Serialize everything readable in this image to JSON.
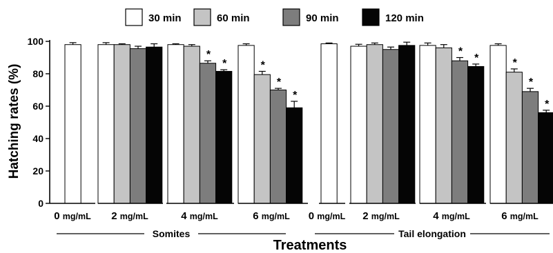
{
  "chart_data": {
    "type": "bar",
    "ylabel": "Hatching rates (%)",
    "xlabel": "Treatments",
    "ylim": [
      0,
      100
    ],
    "yticks": [
      "0",
      "20",
      "40",
      "60",
      "80",
      "100"
    ],
    "legend_position": "top",
    "colors": [
      "#ffffff",
      "#c4c4c4",
      "#7d7d7d",
      "#050505"
    ],
    "series": [
      {
        "name": "30 min"
      },
      {
        "name": "60 min"
      },
      {
        "name": "90 min"
      },
      {
        "name": "120 min"
      }
    ],
    "groups": [
      {
        "label": "Somites",
        "categories": [
          {
            "label": "0 mg/mL",
            "values": [
              98
            ],
            "errors": [
              1.2
            ],
            "sig": [
              false
            ]
          },
          {
            "label": "2 mg/mL",
            "values": [
              98,
              98,
              95.5,
              96.5
            ],
            "errors": [
              1.2,
              0.5,
              1.5,
              2
            ],
            "sig": [
              false,
              false,
              false,
              false
            ]
          },
          {
            "label": "4 mg/mL",
            "values": [
              98,
              97,
              86.5,
              81.5
            ],
            "errors": [
              0.5,
              1,
              1.5,
              1
            ],
            "sig": [
              false,
              false,
              true,
              true
            ]
          },
          {
            "label": "6 mg/mL",
            "values": [
              97.5,
              79.5,
              70,
              59
            ],
            "errors": [
              1,
              2,
              1,
              4
            ],
            "sig": [
              false,
              true,
              true,
              true
            ]
          }
        ]
      },
      {
        "label": "Tail elongation",
        "categories": [
          {
            "label": "0 mg/mL",
            "values": [
              98.5
            ],
            "errors": [
              0.5
            ],
            "sig": [
              false
            ]
          },
          {
            "label": "2 mg/mL",
            "values": [
              97,
              98,
              95,
              97.5
            ],
            "errors": [
              1.2,
              1,
              1.5,
              2
            ],
            "sig": [
              false,
              false,
              false,
              false
            ]
          },
          {
            "label": "4 mg/mL",
            "values": [
              97.5,
              96,
              88,
              84.5
            ],
            "errors": [
              1.5,
              2,
              2,
              1.5
            ],
            "sig": [
              false,
              false,
              true,
              true
            ]
          },
          {
            "label": "6 mg/mL",
            "values": [
              97.5,
              81,
              69,
              56
            ],
            "errors": [
              1,
              2,
              2,
              1.5
            ],
            "sig": [
              false,
              true,
              true,
              true
            ]
          }
        ]
      }
    ],
    "significance_marker": "*"
  }
}
